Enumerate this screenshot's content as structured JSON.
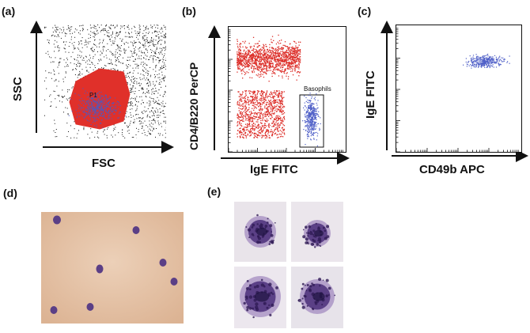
{
  "panels": {
    "a": {
      "label": "(a)",
      "x_axis": "FSC",
      "y_axis": "SSC",
      "gate": "P1",
      "colors": {
        "all_events": "#111111",
        "gate": "#e0302a",
        "basophils": "#4a5bc4"
      }
    },
    "b": {
      "label": "(b)",
      "x_axis": "IgE FITC",
      "y_axis": "CD4/B220 PerCP",
      "gate": "Basophils",
      "colors": {
        "non_basophils": "#dc2e28",
        "basophils": "#5060c8"
      }
    },
    "c": {
      "label": "(c)",
      "x_axis": "CD49b APC",
      "y_axis": "IgE FITC",
      "colors": {
        "events": "#5060c8"
      }
    },
    "d": {
      "label": "(d)",
      "background": "#e6c3a6",
      "cell_color": "#5b3f86"
    },
    "e": {
      "label": "(e)",
      "cell_color": "#4b2f7a"
    }
  }
}
